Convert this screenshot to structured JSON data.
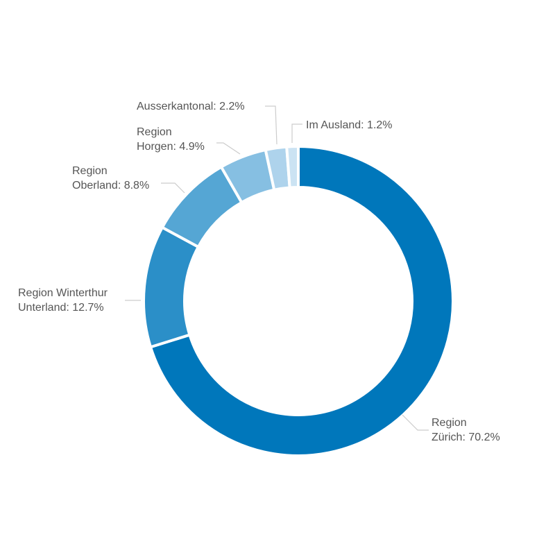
{
  "chart_data": {
    "type": "donut",
    "title": "",
    "slices": [
      {
        "label_lines": [
          "Region",
          "Zürich: 70.2%"
        ],
        "value": 70.2,
        "color": "#0077bb"
      },
      {
        "label_lines": [
          "Region Winterthur",
          "Unterland: 12.7%"
        ],
        "value": 12.7,
        "color": "#2b8fc8"
      },
      {
        "label_lines": [
          "Region",
          "Oberland: 8.8%"
        ],
        "value": 8.8,
        "color": "#55a6d4"
      },
      {
        "label_lines": [
          "Region",
          "Horgen: 4.9%"
        ],
        "value": 4.9,
        "color": "#86bfe2"
      },
      {
        "label_lines": [
          "Ausserkantonal: 2.2%"
        ],
        "value": 2.2,
        "color": "#aed3ec"
      },
      {
        "label_lines": [
          "Im Ausland: 1.2%"
        ],
        "value": 1.2,
        "color": "#cbe3f3"
      }
    ]
  }
}
